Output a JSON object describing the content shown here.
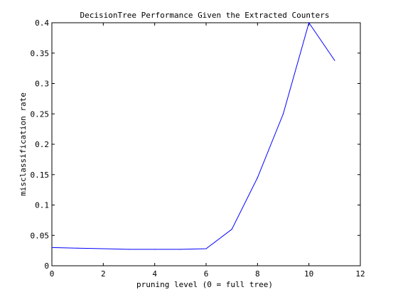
{
  "chart_data": {
    "type": "line",
    "title": "DecisionTree Performance Given the Extracted Counters",
    "xlabel": "pruning level (0 = full tree)",
    "ylabel": "misclassification rate",
    "xlim": [
      0,
      12
    ],
    "ylim": [
      0,
      0.4
    ],
    "xticks": [
      0,
      2,
      4,
      6,
      8,
      10,
      12
    ],
    "yticks": [
      0,
      0.05,
      0.1,
      0.15,
      0.2,
      0.25,
      0.3,
      0.35,
      0.4
    ],
    "xtick_labels": [
      "0",
      "2",
      "4",
      "6",
      "8",
      "10",
      "12"
    ],
    "ytick_labels": [
      "0",
      "0.05",
      "0.1",
      "0.15",
      "0.2",
      "0.25",
      "0.3",
      "0.35",
      "0.4"
    ],
    "grid": false,
    "series": [
      {
        "x": [
          0,
          1,
          2,
          3,
          4,
          5,
          6,
          7,
          8,
          9,
          10,
          11
        ],
        "y": [
          0.03,
          0.029,
          0.028,
          0.027,
          0.027,
          0.027,
          0.028,
          0.06,
          0.145,
          0.25,
          0.4,
          0.338
        ],
        "color": "#0000ff"
      }
    ]
  }
}
